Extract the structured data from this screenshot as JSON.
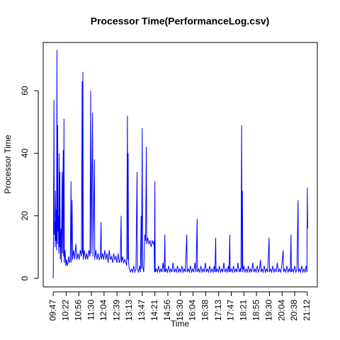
{
  "chart_data": {
    "type": "line",
    "title": "Processor Time(PerformanceLog.csv)",
    "xlabel": "Time",
    "ylabel": "Processor Time",
    "color": "#0000ff",
    "xlim": [
      "09:20",
      "21:39"
    ],
    "ylim": [
      -2.72,
      75.4
    ],
    "yticks": [
      0,
      20,
      40,
      60
    ],
    "xticks": [
      "09:47",
      "10:22",
      "10:56",
      "11:30",
      "12:04",
      "12:39",
      "13:13",
      "13:47",
      "14:21",
      "14:56",
      "15:30",
      "16:04",
      "16:38",
      "17:13",
      "17:47",
      "18:21",
      "18:55",
      "19:30",
      "20:04",
      "20:38",
      "21:12"
    ],
    "x": [
      "09:47",
      "09:48",
      "09:49",
      "09:50",
      "09:51",
      "09:52",
      "09:53",
      "09:54",
      "09:55",
      "09:56",
      "09:57",
      "09:58",
      "09:59",
      "10:00",
      "10:01",
      "10:02",
      "10:03",
      "10:04",
      "10:05",
      "10:06",
      "10:08",
      "10:09",
      "10:11",
      "10:12",
      "10:14",
      "10:15",
      "10:16",
      "10:17",
      "10:19",
      "10:21",
      "10:23",
      "10:25",
      "10:27",
      "10:29",
      "10:31",
      "10:33",
      "10:35",
      "10:36",
      "10:38",
      "10:39",
      "10:42",
      "10:45",
      "10:48",
      "10:51",
      "10:54",
      "10:57",
      "11:00",
      "11:03",
      "11:05",
      "11:06",
      "11:07",
      "11:08",
      "11:11",
      "11:14",
      "11:17",
      "11:20",
      "11:23",
      "11:26",
      "11:28",
      "11:29",
      "11:33",
      "11:34",
      "11:38",
      "11:39",
      "11:42",
      "11:45",
      "11:48",
      "11:51",
      "11:54",
      "11:56",
      "11:57",
      "12:00",
      "12:03",
      "12:06",
      "12:09",
      "12:12",
      "12:15",
      "12:18",
      "12:21",
      "12:24",
      "12:27",
      "12:30",
      "12:33",
      "12:36",
      "12:39",
      "12:42",
      "12:45",
      "12:48",
      "12:50",
      "12:51",
      "12:54",
      "12:57",
      "13:00",
      "13:03",
      "13:05",
      "13:07",
      "13:08",
      "13:09",
      "13:10",
      "13:12",
      "13:15",
      "13:18",
      "13:21",
      "13:24",
      "13:27",
      "13:30",
      "13:33",
      "13:34",
      "13:37",
      "13:40",
      "13:42",
      "13:44",
      "13:45",
      "13:47",
      "13:48",
      "13:51",
      "13:54",
      "13:56",
      "13:58",
      "13:59",
      "14:02",
      "14:05",
      "14:08",
      "14:11",
      "14:14",
      "14:17",
      "14:19",
      "14:20",
      "14:21",
      "14:22",
      "14:25",
      "14:28",
      "14:31",
      "14:34",
      "14:37",
      "14:40",
      "14:43",
      "14:46",
      "14:48",
      "14:49",
      "14:52",
      "14:55",
      "14:58",
      "15:01",
      "15:04",
      "15:07",
      "15:10",
      "15:13",
      "15:16",
      "15:19",
      "15:22",
      "15:25",
      "15:28",
      "15:31",
      "15:34",
      "15:37",
      "15:40",
      "15:43",
      "15:47",
      "15:48",
      "15:51",
      "15:54",
      "15:57",
      "16:00",
      "16:03",
      "16:06",
      "16:09",
      "16:12",
      "16:15",
      "16:16",
      "16:19",
      "16:22",
      "16:25",
      "16:28",
      "16:31",
      "16:34",
      "16:37",
      "16:40",
      "16:43",
      "16:46",
      "16:49",
      "16:52",
      "16:55",
      "16:58",
      "17:01",
      "17:03",
      "17:05",
      "17:06",
      "17:09",
      "17:12",
      "17:15",
      "17:18",
      "17:21",
      "17:24",
      "17:27",
      "17:30",
      "17:33",
      "17:36",
      "17:39",
      "17:41",
      "17:43",
      "17:44",
      "17:47",
      "17:50",
      "17:53",
      "17:56",
      "17:59",
      "18:02",
      "18:05",
      "18:08",
      "18:11",
      "18:13",
      "18:15",
      "18:16",
      "18:17",
      "18:18",
      "18:21",
      "18:24",
      "18:27",
      "18:30",
      "18:33",
      "18:36",
      "18:39",
      "18:42",
      "18:45",
      "18:48",
      "18:51",
      "18:54",
      "18:57",
      "19:00",
      "19:03",
      "19:06",
      "19:07",
      "19:10",
      "19:13",
      "19:16",
      "19:19",
      "19:22",
      "19:25",
      "19:29",
      "19:30",
      "19:33",
      "19:36",
      "19:39",
      "19:42",
      "19:45",
      "19:48",
      "19:51",
      "19:54",
      "19:57",
      "20:00",
      "20:03",
      "20:07",
      "20:08",
      "20:11",
      "20:14",
      "20:17",
      "20:20",
      "20:23",
      "20:26",
      "20:28",
      "20:29",
      "20:32",
      "20:35",
      "20:38",
      "20:41",
      "20:44",
      "20:47",
      "20:48",
      "20:51",
      "20:54",
      "20:57",
      "21:00",
      "21:03",
      "21:06",
      "21:09",
      "21:11",
      "21:12",
      "21:13"
    ],
    "values": [
      0,
      21,
      57,
      14,
      18,
      10,
      28,
      12,
      22,
      9,
      73,
      11,
      49,
      15,
      20,
      8,
      40,
      10,
      34,
      6,
      16,
      5,
      34,
      8,
      41,
      7,
      51,
      5,
      9,
      4,
      6,
      4,
      5,
      7,
      5,
      6,
      31,
      5,
      25,
      6,
      9,
      6,
      11,
      6,
      8,
      6,
      9,
      7,
      63,
      8,
      66,
      6,
      9,
      6,
      8,
      6,
      9,
      7,
      60,
      8,
      53,
      7,
      38,
      6,
      9,
      6,
      8,
      6,
      7,
      18,
      6,
      8,
      6,
      9,
      6,
      8,
      5,
      9,
      6,
      7,
      5,
      8,
      6,
      7,
      5,
      8,
      5,
      6,
      20,
      5,
      7,
      5,
      6,
      5,
      4,
      52,
      6,
      40,
      5,
      3,
      2,
      3,
      2,
      4,
      2,
      3,
      34,
      3,
      2,
      4,
      2,
      20,
      3,
      48,
      4,
      2,
      14,
      12,
      42,
      11,
      13,
      11,
      12,
      10,
      12,
      11,
      12,
      2,
      31,
      2,
      3,
      2,
      4,
      2,
      3,
      2,
      5,
      2,
      14,
      2,
      3,
      2,
      4,
      2,
      3,
      2,
      5,
      2,
      3,
      2,
      4,
      2,
      3,
      2,
      4,
      2,
      3,
      2,
      14,
      2,
      3,
      2,
      4,
      2,
      3,
      2,
      5,
      2,
      19,
      2,
      3,
      2,
      4,
      2,
      3,
      2,
      5,
      2,
      3,
      2,
      4,
      2,
      3,
      2,
      4,
      2,
      13,
      2,
      3,
      2,
      4,
      2,
      3,
      2,
      5,
      2,
      3,
      2,
      4,
      2,
      14,
      2,
      3,
      2,
      4,
      2,
      3,
      2,
      5,
      2,
      3,
      2,
      49,
      3,
      28,
      2,
      4,
      2,
      3,
      2,
      4,
      2,
      3,
      2,
      5,
      2,
      3,
      2,
      4,
      2,
      3,
      6,
      2,
      3,
      2,
      4,
      2,
      3,
      2,
      13,
      2,
      3,
      2,
      4,
      2,
      3,
      2,
      5,
      2,
      3,
      2,
      4,
      9,
      2,
      3,
      2,
      4,
      2,
      3,
      2,
      14,
      2,
      3,
      2,
      4,
      2,
      3,
      25,
      2,
      3,
      2,
      4,
      2,
      3,
      2,
      4,
      2,
      29,
      16
    ]
  }
}
